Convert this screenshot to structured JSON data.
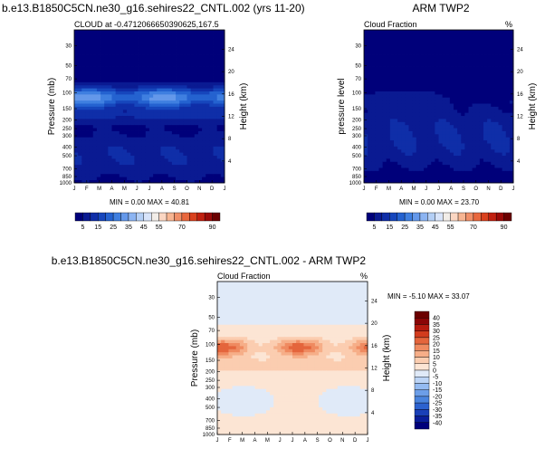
{
  "chart_data": [
    {
      "type": "heatmap",
      "id": "model",
      "title": "b.e13.B1850C5CN.ne30_g16.sehires22_CNTL.002 (yrs 11-20)",
      "subtitle_left": "CLOUD at -0.4712066650390625,167.5",
      "subtitle_right": "",
      "xlabel": "",
      "ylabel": "Pressure (mb)",
      "ylabel_right": "Height (km)",
      "x": [
        "J",
        "F",
        "M",
        "A",
        "M",
        "J",
        "J",
        "A",
        "S",
        "O",
        "N",
        "D",
        "J"
      ],
      "y_ticks": [
        "30",
        "50",
        "70",
        "100",
        "150",
        "200",
        "250",
        "300",
        "400",
        "500",
        "700",
        "850",
        "1000"
      ],
      "y_values": [
        30,
        50,
        70,
        100,
        150,
        200,
        250,
        300,
        400,
        500,
        700,
        850,
        1000
      ],
      "ylim": [
        1000,
        20
      ],
      "right_ticks": [
        "24",
        "20",
        "16",
        "12",
        "8",
        "4"
      ],
      "right_values": [
        24,
        20,
        16,
        12,
        8,
        4
      ],
      "levels": [
        5,
        10,
        15,
        20,
        25,
        30,
        35,
        40,
        45,
        50,
        55,
        60,
        65,
        70,
        75,
        80,
        85,
        90
      ],
      "min_max_text": "MIN =  0.00 MAX = 40.81",
      "colorbar_labels": [
        "5",
        "15",
        "25",
        "35",
        "45",
        "55",
        "70",
        "90"
      ]
    },
    {
      "type": "heatmap",
      "id": "obs",
      "title": "ARM TWP2",
      "subtitle_left": "Cloud Fraction",
      "subtitle_right": "%",
      "xlabel": "",
      "ylabel": "pressure level",
      "ylabel_right": "Height (km)",
      "x": [
        "J",
        "F",
        "M",
        "A",
        "M",
        "J",
        "J",
        "A",
        "S",
        "O",
        "N",
        "D",
        "J"
      ],
      "y_ticks": [
        "30",
        "50",
        "70",
        "100",
        "150",
        "200",
        "250",
        "300",
        "400",
        "500",
        "700",
        "850",
        "1000"
      ],
      "y_values": [
        30,
        50,
        70,
        100,
        150,
        200,
        250,
        300,
        400,
        500,
        700,
        850,
        1000
      ],
      "ylim": [
        1000,
        20
      ],
      "right_ticks": [
        "24",
        "20",
        "16",
        "12",
        "8",
        "4"
      ],
      "right_values": [
        24,
        20,
        16,
        12,
        8,
        4
      ],
      "levels": [
        5,
        10,
        15,
        20,
        25,
        30,
        35,
        40,
        45,
        50,
        55,
        60,
        65,
        70,
        75,
        80,
        85,
        90
      ],
      "min_max_text": "MIN =  0.00 MAX = 23.70",
      "colorbar_labels": [
        "5",
        "15",
        "25",
        "35",
        "45",
        "55",
        "70",
        "90"
      ]
    },
    {
      "type": "heatmap",
      "id": "diff",
      "title": "b.e13.B1850C5CN.ne30_g16.sehires22_CNTL.002 - ARM TWP2",
      "subtitle_left": "Cloud Fraction",
      "subtitle_right": "%",
      "xlabel": "",
      "ylabel": "Pressure (mb)",
      "ylabel_right": "Height (km)",
      "x": [
        "J",
        "F",
        "M",
        "A",
        "M",
        "J",
        "J",
        "A",
        "S",
        "O",
        "N",
        "D",
        "J"
      ],
      "y_ticks": [
        "30",
        "50",
        "70",
        "100",
        "150",
        "200",
        "250",
        "300",
        "400",
        "500",
        "700",
        "850",
        "1000"
      ],
      "y_values": [
        30,
        50,
        70,
        100,
        150,
        200,
        250,
        300,
        400,
        500,
        700,
        850,
        1000
      ],
      "ylim": [
        1000,
        20
      ],
      "right_ticks": [
        "24",
        "20",
        "16",
        "12",
        "8",
        "4"
      ],
      "right_values": [
        24,
        20,
        16,
        12,
        8,
        4
      ],
      "levels": [
        -40,
        -35,
        -30,
        -25,
        -20,
        -15,
        -10,
        -5,
        0,
        5,
        10,
        15,
        20,
        25,
        30,
        35,
        40
      ],
      "min_max_text": "MIN = -5.10 MAX = 33.07",
      "colorbar_labels": [
        "40",
        "35",
        "30",
        "25",
        "20",
        "15",
        "10",
        "5",
        "0",
        "-5",
        "-10",
        "-15",
        "-20",
        "-25",
        "-30",
        "-35",
        "-40"
      ]
    }
  ],
  "colors": {
    "seq": [
      "#00007a",
      "#0a1a92",
      "#0f2ea8",
      "#1646bc",
      "#2462d0",
      "#3f7fe0",
      "#6498ea",
      "#8cb4f2",
      "#b4cff6",
      "#d8e4fa",
      "#f2ede8",
      "#fbd6c2",
      "#f7b592",
      "#f08f68",
      "#e8683e",
      "#d9411e",
      "#c02010",
      "#9a0a08",
      "#6b0000"
    ],
    "div": [
      "#00007a",
      "#0a1e9a",
      "#1a40b8",
      "#2c62cf",
      "#4a84de",
      "#6c9ee8",
      "#94bbf2",
      "#bcd4f6",
      "#e0eaf8",
      "#fce5d4",
      "#fbcdb0",
      "#f6ae88",
      "#ef8a60",
      "#e4653c",
      "#d23c1e",
      "#b51a0e",
      "#8a0506",
      "#6b0000"
    ]
  }
}
